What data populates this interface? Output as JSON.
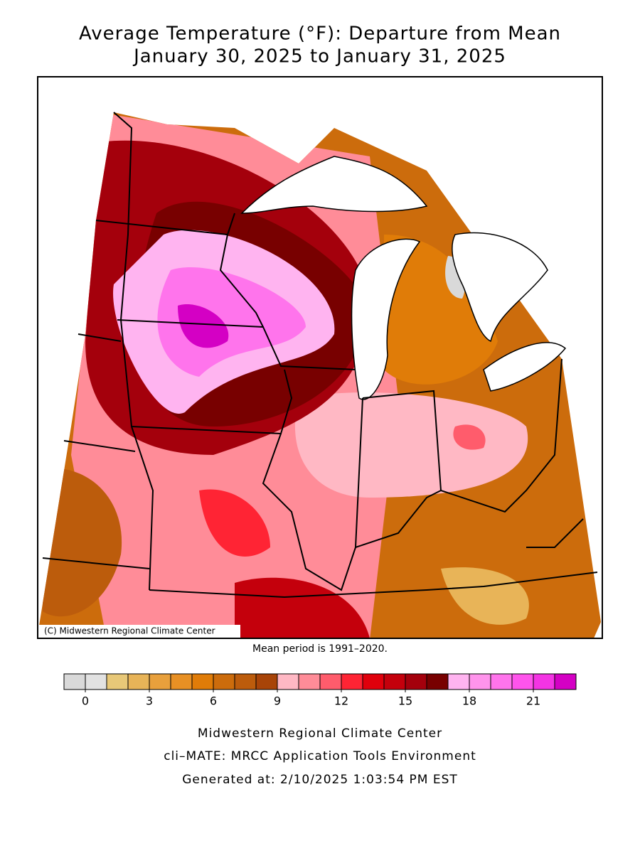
{
  "title": [
    "Average Temperature (°F): Departure from Mean",
    "January 30, 2025 to January 31, 2025"
  ],
  "map": {
    "credit": "(C) Midwestern Regional Climate Center"
  },
  "note": "Mean period is 1991–2020.",
  "colorbar": {
    "bins": [
      -1,
      0,
      1,
      2,
      3,
      4,
      5,
      6,
      7,
      8,
      9,
      10,
      11,
      12,
      13,
      14,
      15,
      16,
      17,
      18,
      19,
      20,
      21,
      22,
      23
    ],
    "colors": [
      "#d9d9d9",
      "#e2e2e2",
      "#e8c878",
      "#e8b458",
      "#e8a03c",
      "#e89024",
      "#e07c08",
      "#cc6c0c",
      "#bc5c0c",
      "#a84408",
      "#ffb8c4",
      "#ff8c98",
      "#ff5c6c",
      "#ff2434",
      "#e0000c",
      "#c4000c",
      "#a4000c",
      "#780000",
      "#ffb4f0",
      "#ff94ec",
      "#ff74ec",
      "#ff54ec",
      "#f434e4",
      "#d400c4"
    ],
    "ticks": [
      0,
      3,
      6,
      9,
      12,
      15,
      18,
      21
    ]
  },
  "footer": [
    "Midwestern Regional Climate Center",
    "cli–MATE: MRCC Application Tools Environment",
    "Generated at: 2/10/2025 1:03:54 PM EST"
  ]
}
